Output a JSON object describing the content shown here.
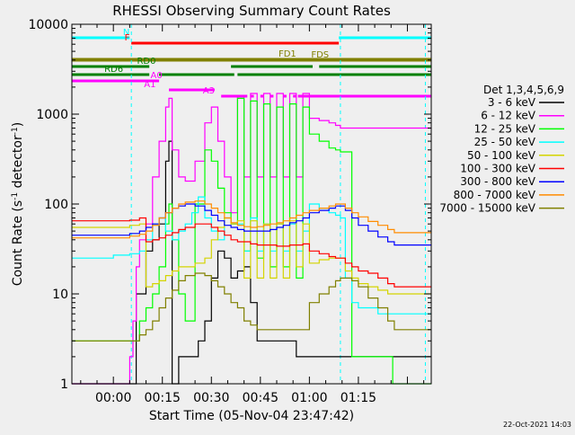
{
  "chart_data": {
    "type": "line",
    "title": "RHESSI Observing Summary Count Rates",
    "xlabel": "Start Time (05-Nov-04 23:47:42)",
    "ylabel": "Count Rate (s",
    "ylabel_sup": "-1",
    "ylabel_mid": " detector",
    "ylabel_sup2": "-1",
    "ylabel_end": ")",
    "yscale": "log",
    "ylim": [
      1,
      10000
    ],
    "y_ticks": [
      {
        "value": 1,
        "label": "1"
      },
      {
        "value": 10,
        "label": "10"
      },
      {
        "value": 100,
        "label": "100"
      },
      {
        "value": 1000,
        "label": "1000"
      },
      {
        "value": 10000,
        "label": "10000"
      }
    ],
    "xlim": [
      -12.7,
      97.3
    ],
    "x_ticks": [
      {
        "value": 0,
        "label": "00:00"
      },
      {
        "value": 15,
        "label": "00:15"
      },
      {
        "value": 30,
        "label": "00:30"
      },
      {
        "value": 45,
        "label": "00:45"
      },
      {
        "value": 60,
        "label": "01:00"
      },
      {
        "value": 75,
        "label": "01:15"
      }
    ],
    "legend_title": "Det 1,3,4,5,6,9",
    "legend_position": "right",
    "footer_date": "22-Oct-2021 14:03",
    "series": [
      {
        "name": "3 - 6 keV",
        "color": "#000000",
        "x": [
          -12.7,
          5,
          7,
          10,
          12,
          14,
          16,
          17,
          18,
          20,
          22,
          24,
          26,
          28,
          30,
          32,
          34,
          36,
          38,
          40,
          42,
          44,
          46,
          48,
          50,
          52,
          54,
          56,
          58,
          59.5
        ],
        "values": [
          1,
          1,
          10,
          30,
          40,
          60,
          300,
          500,
          1,
          2,
          2,
          2,
          3,
          5,
          15,
          30,
          25,
          15,
          18,
          20,
          8,
          3,
          3,
          3,
          3,
          3,
          3,
          2,
          2,
          2
        ]
      },
      {
        "name": "6 - 12 keV",
        "color": "#ff00ff",
        "x": [
          -12.7,
          0,
          5,
          6,
          7,
          8,
          10,
          12,
          14,
          16,
          17,
          18,
          20,
          22,
          25,
          28,
          30,
          32,
          34,
          36,
          38,
          40,
          42,
          44,
          46,
          48,
          50,
          52,
          54,
          56,
          58,
          60,
          63,
          66,
          68,
          69.5
        ],
        "values": [
          1,
          1,
          2,
          5,
          20,
          40,
          60,
          200,
          500,
          1200,
          1500,
          400,
          200,
          180,
          300,
          800,
          1200,
          500,
          200,
          80,
          1600,
          200,
          1700,
          200,
          1700,
          200,
          1700,
          200,
          1700,
          200,
          1700,
          900,
          850,
          800,
          750,
          700
        ]
      },
      {
        "name": "12 - 25 keV",
        "color": "#00ff00",
        "x": [
          -12.7,
          0,
          5,
          8,
          10,
          12,
          14,
          16,
          17,
          18,
          20,
          22,
          25,
          28,
          30,
          32,
          34,
          36,
          38,
          40,
          42,
          44,
          46,
          48,
          50,
          52,
          54,
          56,
          58,
          60,
          63,
          66,
          68,
          69.5,
          73,
          75,
          85.5
        ],
        "values": [
          3,
          3,
          3,
          5,
          7,
          10,
          20,
          60,
          100,
          40,
          10,
          5,
          100,
          400,
          300,
          150,
          80,
          60,
          1500,
          30,
          1400,
          25,
          1300,
          20,
          1200,
          20,
          1300,
          15,
          1200,
          600,
          500,
          420,
          400,
          380,
          2,
          2,
          1
        ]
      },
      {
        "name": "25 - 50 keV",
        "color": "#00ffff",
        "x": [
          -12.7,
          0,
          5,
          8,
          10,
          12,
          14,
          16,
          18,
          20,
          22,
          24,
          26,
          28,
          30,
          32,
          34,
          36,
          38,
          40,
          42,
          44,
          46,
          48,
          50,
          52,
          54,
          56,
          58,
          60,
          63,
          66,
          68,
          69.5,
          71,
          73,
          75,
          78,
          81,
          84,
          86
        ],
        "values": [
          25,
          27,
          28,
          30,
          40,
          60,
          70,
          50,
          40,
          50,
          60,
          80,
          120,
          70,
          50,
          40,
          70,
          60,
          60,
          30,
          70,
          30,
          60,
          30,
          60,
          30,
          60,
          30,
          50,
          100,
          90,
          80,
          75,
          70,
          15,
          8,
          7,
          7,
          6,
          6,
          6
        ]
      },
      {
        "name": "50 - 100 keV",
        "color": "#d4d400",
        "x": [
          -12.7,
          0,
          5,
          8,
          10,
          12,
          14,
          16,
          18,
          20,
          22,
          25,
          28,
          30,
          32,
          34,
          36,
          38,
          40,
          42,
          44,
          46,
          48,
          50,
          52,
          54,
          56,
          58,
          60,
          63,
          66,
          68,
          69.5,
          71,
          73,
          75,
          78,
          81,
          84,
          86
        ],
        "values": [
          55,
          55,
          58,
          60,
          12,
          13,
          14,
          16,
          18,
          20,
          20,
          22,
          25,
          40,
          55,
          70,
          60,
          65,
          15,
          65,
          15,
          60,
          15,
          60,
          15,
          65,
          20,
          60,
          22,
          24,
          25,
          25,
          25,
          18,
          15,
          13,
          12,
          11,
          10,
          10
        ]
      },
      {
        "name": "100 - 300 keV",
        "color": "#ff0000",
        "x": [
          -12.7,
          0,
          5,
          8,
          10,
          12,
          14,
          16,
          18,
          20,
          22,
          25,
          28,
          30,
          32,
          34,
          36,
          38,
          40,
          42,
          44,
          46,
          48,
          50,
          52,
          54,
          56,
          58,
          60,
          63,
          66,
          68,
          69.5,
          71,
          73,
          75,
          78,
          81,
          84,
          86
        ],
        "values": [
          65,
          65,
          66,
          70,
          38,
          40,
          42,
          45,
          48,
          52,
          55,
          60,
          60,
          55,
          50,
          45,
          40,
          38,
          38,
          36,
          35,
          35,
          35,
          34,
          34,
          35,
          35,
          36,
          30,
          28,
          26,
          25,
          25,
          22,
          20,
          18,
          17,
          15,
          13,
          12
        ]
      },
      {
        "name": "300 - 800 keV",
        "color": "#0000ff",
        "x": [
          -12.7,
          0,
          5,
          8,
          10,
          12,
          14,
          16,
          18,
          20,
          22,
          25,
          28,
          30,
          32,
          34,
          36,
          38,
          40,
          42,
          44,
          46,
          48,
          50,
          52,
          54,
          56,
          58,
          60,
          63,
          66,
          68,
          69.5,
          71,
          73,
          75,
          78,
          81,
          84,
          86
        ],
        "values": [
          45,
          45,
          47,
          50,
          55,
          60,
          70,
          80,
          90,
          95,
          100,
          95,
          85,
          75,
          65,
          58,
          55,
          52,
          50,
          50,
          50,
          50,
          52,
          55,
          58,
          62,
          65,
          70,
          80,
          85,
          90,
          95,
          95,
          85,
          70,
          58,
          50,
          43,
          38,
          35
        ]
      },
      {
        "name": "800 - 7000 keV",
        "color": "#ff8c00",
        "x": [
          -12.7,
          0,
          5,
          8,
          10,
          12,
          14,
          16,
          18,
          20,
          22,
          25,
          28,
          30,
          32,
          34,
          36,
          38,
          40,
          42,
          44,
          46,
          48,
          50,
          52,
          54,
          56,
          58,
          60,
          63,
          66,
          68,
          69.5,
          71,
          73,
          75,
          78,
          81,
          84,
          86
        ],
        "values": [
          42,
          42,
          44,
          46,
          50,
          58,
          70,
          80,
          90,
          100,
          105,
          108,
          100,
          90,
          80,
          70,
          62,
          58,
          56,
          55,
          56,
          58,
          60,
          62,
          65,
          70,
          75,
          80,
          85,
          90,
          95,
          100,
          100,
          90,
          80,
          72,
          64,
          58,
          52,
          48
        ]
      },
      {
        "name": "7000 - 15000 keV",
        "color": "#808000",
        "x": [
          -12.7,
          0,
          5,
          8,
          10,
          12,
          14,
          16,
          18,
          20,
          22,
          25,
          28,
          30,
          32,
          34,
          36,
          38,
          40,
          42,
          44,
          46,
          48,
          50,
          52,
          54,
          56,
          58,
          60,
          63,
          66,
          68,
          69.5,
          71,
          73,
          75,
          78,
          81,
          84,
          86
        ],
        "values": [
          3,
          3,
          3,
          3.5,
          4,
          5,
          7,
          9,
          11,
          14,
          16,
          17,
          16,
          14,
          12,
          10,
          8,
          7,
          5,
          4.5,
          4,
          4,
          4,
          4,
          4,
          4,
          4,
          4,
          8,
          10,
          12,
          14,
          15,
          15,
          14,
          12,
          9,
          7,
          5,
          4
        ]
      }
    ],
    "flags": [
      {
        "label": "N",
        "color": "#00ffff",
        "label_at": 5,
        "segments": [
          [
            -12.7,
            5
          ],
          [
            69,
            97.3
          ]
        ]
      },
      {
        "label": "F",
        "color": "#ff0000",
        "label_at": 5,
        "segments": [
          [
            5.5,
            69
          ]
        ]
      },
      {
        "label": "FD1",
        "color": "#808000",
        "label_at": 56,
        "segments": [
          [
            -12.7,
            97.3
          ]
        ]
      },
      {
        "label": "FDS",
        "color": "#808000",
        "label_at": 66,
        "segments": [
          [
            -12.7,
            97.3
          ]
        ]
      },
      {
        "label": "RD0",
        "color": "#008000",
        "label_at": 13,
        "segments": [
          [
            -12.7,
            11
          ],
          [
            36,
            61
          ],
          [
            63,
            97.3
          ]
        ]
      },
      {
        "label": "RD6",
        "color": "#008000",
        "label_at": 3,
        "segments": [
          [
            -12.7,
            11
          ],
          [
            14,
            37
          ],
          [
            38,
            97.3
          ]
        ]
      },
      {
        "label": "A0",
        "color": "#ff00ff",
        "label_at": 15,
        "segments": [
          [
            -12.7,
            14
          ]
        ]
      },
      {
        "label": "A1",
        "color": "#ff00ff",
        "label_at": 13,
        "segments": [
          [
            17,
            31
          ]
        ]
      },
      {
        "label": "A3",
        "color": "#ff00ff",
        "label_at": 31,
        "segments": [
          [
            33,
            41
          ],
          [
            42,
            43
          ],
          [
            45,
            46
          ],
          [
            48,
            49
          ],
          [
            52,
            53
          ],
          [
            55,
            56
          ],
          [
            56.5,
            97.3
          ]
        ]
      }
    ],
    "markers": [
      {
        "x": 5.5,
        "color": "#00ffff"
      },
      {
        "x": 69.5,
        "color": "#00ffff"
      },
      {
        "x": 95.5,
        "color": "#00ffff"
      }
    ]
  }
}
